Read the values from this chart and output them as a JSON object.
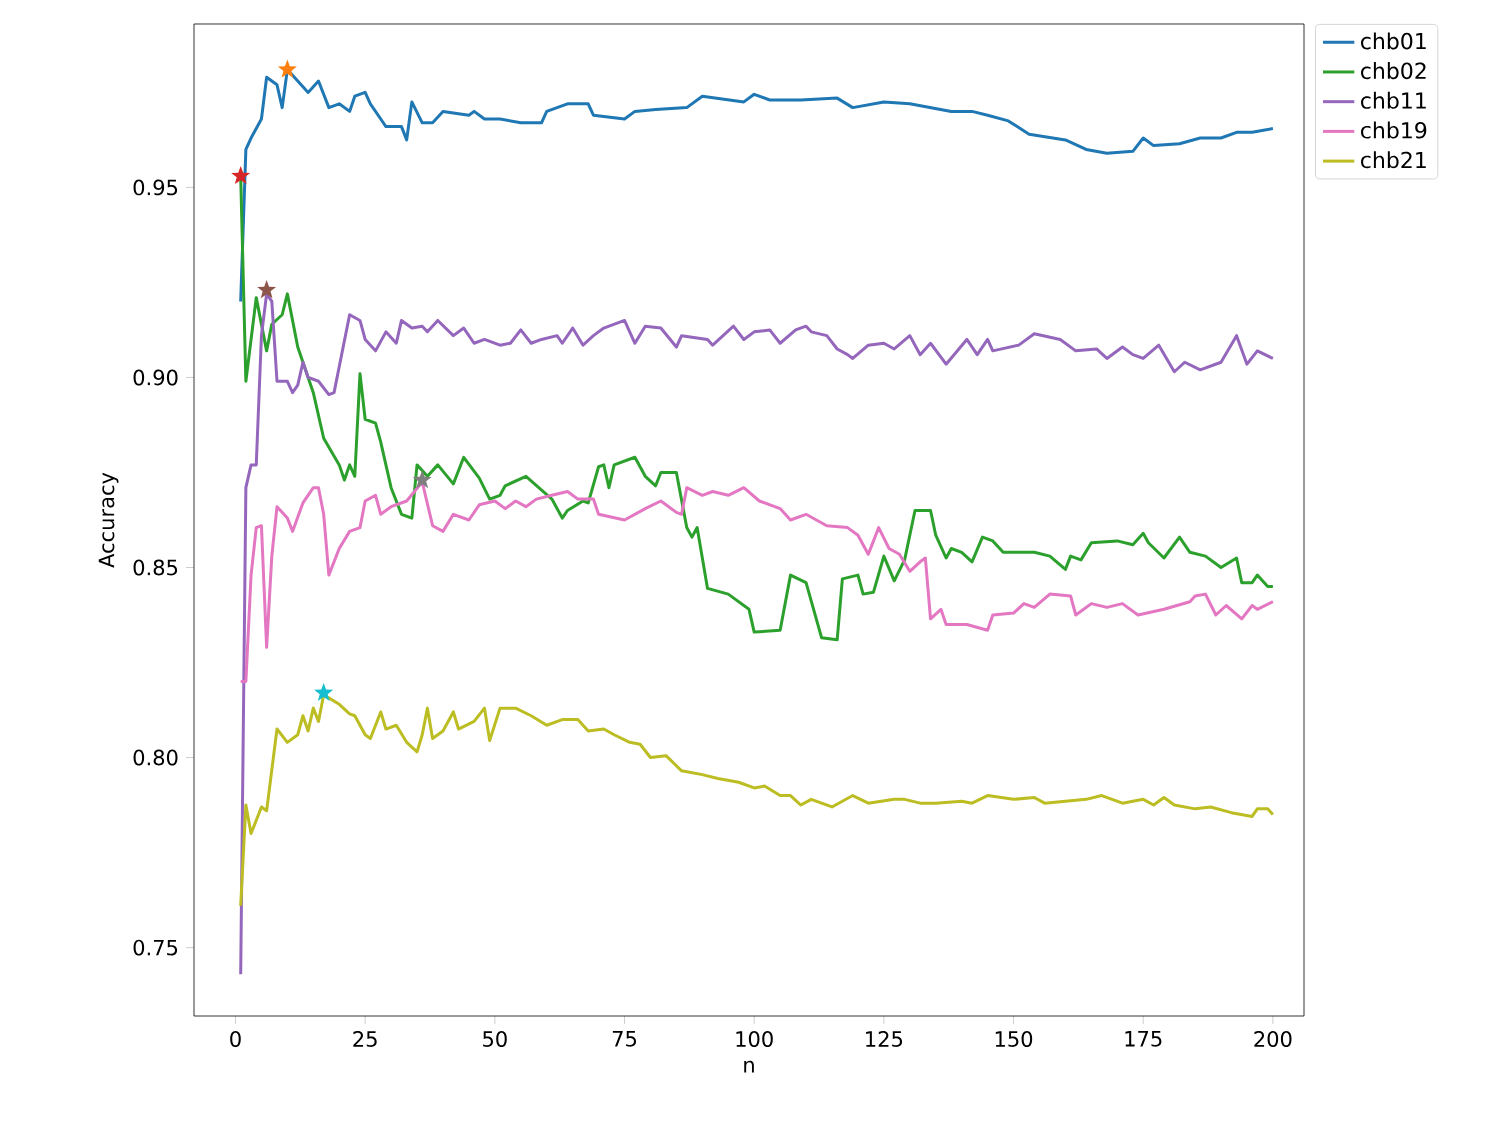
{
  "chart_data": {
    "type": "line",
    "xlabel": "n",
    "ylabel": "Accuracy",
    "xlim": [
      -8,
      206
    ],
    "ylim": [
      0.732,
      0.993
    ],
    "xticks": [
      0,
      25,
      50,
      75,
      100,
      125,
      150,
      175,
      200
    ],
    "yticks": [
      {
        "value": 0.75,
        "label": "0.75"
      },
      {
        "value": 0.8,
        "label": "0.80"
      },
      {
        "value": 0.85,
        "label": "0.85"
      },
      {
        "value": 0.9,
        "label": "0.90"
      },
      {
        "value": 0.95,
        "label": "0.95"
      }
    ],
    "legend": "top right",
    "series": [
      {
        "name": "chb01",
        "color": "#1f77b4",
        "x": [
          1,
          2,
          3,
          5,
          6,
          8,
          9,
          10,
          12,
          14,
          16,
          18,
          20,
          22,
          23,
          25,
          26,
          28,
          29,
          32,
          33,
          34,
          36,
          38,
          40,
          45,
          46,
          48,
          51,
          55,
          59,
          60,
          64,
          68,
          69,
          75,
          77,
          81,
          87,
          90,
          98,
          100,
          103,
          109,
          116,
          119,
          125,
          130,
          134,
          138,
          142,
          145,
          149,
          153,
          160,
          164,
          168,
          173,
          175,
          177,
          182,
          186,
          190,
          193,
          196,
          200
        ],
        "values": [
          0.92,
          0.96,
          0.963,
          0.968,
          0.979,
          0.977,
          0.971,
          0.981,
          0.978,
          0.975,
          0.978,
          0.971,
          0.972,
          0.97,
          0.974,
          0.975,
          0.972,
          0.968,
          0.966,
          0.966,
          0.9625,
          0.9725,
          0.967,
          0.967,
          0.97,
          0.969,
          0.97,
          0.968,
          0.968,
          0.967,
          0.967,
          0.97,
          0.972,
          0.972,
          0.969,
          0.968,
          0.97,
          0.9705,
          0.971,
          0.974,
          0.9725,
          0.9745,
          0.973,
          0.973,
          0.9735,
          0.971,
          0.9725,
          0.972,
          0.971,
          0.97,
          0.97,
          0.969,
          0.9675,
          0.964,
          0.9625,
          0.96,
          0.959,
          0.9595,
          0.963,
          0.961,
          0.9615,
          0.963,
          0.963,
          0.9645,
          0.9645,
          0.9655
        ]
      },
      {
        "name": "chb02",
        "color": "#2ca02c",
        "x": [
          1,
          2,
          4,
          6,
          7,
          9,
          10,
          12,
          13,
          15,
          17,
          20,
          21,
          22,
          23,
          24,
          25,
          27,
          28,
          30,
          32,
          34,
          35,
          37,
          39,
          42,
          44,
          47,
          49,
          51,
          52,
          56,
          61,
          63,
          64,
          67,
          68,
          70,
          71,
          72,
          73,
          77,
          79,
          81,
          82,
          85,
          87,
          88,
          89,
          91,
          95,
          99,
          100,
          105,
          107,
          110,
          113,
          116,
          117,
          120,
          121,
          123,
          125,
          127,
          129,
          131,
          134,
          135,
          137,
          138,
          140,
          142,
          144,
          146,
          148,
          154,
          157,
          160,
          161,
          163,
          165,
          170,
          173,
          175,
          176,
          179,
          182,
          184,
          187,
          190,
          193,
          194,
          196,
          197,
          199,
          200
        ],
        "values": [
          0.953,
          0.899,
          0.921,
          0.907,
          0.914,
          0.9165,
          0.922,
          0.908,
          0.904,
          0.896,
          0.884,
          0.877,
          0.873,
          0.877,
          0.874,
          0.901,
          0.889,
          0.888,
          0.883,
          0.871,
          0.864,
          0.863,
          0.877,
          0.874,
          0.877,
          0.872,
          0.879,
          0.8735,
          0.868,
          0.869,
          0.8715,
          0.874,
          0.868,
          0.863,
          0.865,
          0.8675,
          0.867,
          0.8765,
          0.877,
          0.871,
          0.877,
          0.879,
          0.874,
          0.8715,
          0.875,
          0.875,
          0.8605,
          0.858,
          0.8605,
          0.8445,
          0.843,
          0.839,
          0.833,
          0.8335,
          0.848,
          0.846,
          0.8315,
          0.831,
          0.847,
          0.848,
          0.843,
          0.8435,
          0.853,
          0.8465,
          0.852,
          0.865,
          0.865,
          0.8585,
          0.8525,
          0.855,
          0.854,
          0.8515,
          0.858,
          0.857,
          0.854,
          0.854,
          0.853,
          0.8495,
          0.853,
          0.852,
          0.8565,
          0.857,
          0.856,
          0.859,
          0.8565,
          0.8525,
          0.858,
          0.854,
          0.853,
          0.85,
          0.8525,
          0.846,
          0.846,
          0.848,
          0.845,
          0.845
        ]
      },
      {
        "name": "chb11",
        "color": "#9467bd",
        "x": [
          1,
          2,
          3,
          4,
          5,
          6,
          7,
          8,
          10,
          11,
          12,
          13,
          14,
          16,
          18,
          19,
          22,
          24,
          25,
          27,
          29,
          31,
          32,
          34,
          36,
          37,
          39,
          42,
          44,
          46,
          48,
          51,
          53,
          55,
          57,
          59,
          62,
          63,
          65,
          67,
          69,
          71,
          75,
          77,
          79,
          82,
          85,
          86,
          91,
          92,
          94,
          96,
          98,
          100,
          103,
          105,
          108,
          110,
          111,
          114,
          116,
          118,
          119,
          122,
          125,
          127,
          130,
          132,
          134,
          137,
          141,
          143,
          145,
          146,
          151,
          154,
          159,
          162,
          166,
          168,
          171,
          173,
          175,
          178,
          181,
          183,
          186,
          190,
          193,
          195,
          197,
          200
        ],
        "values": [
          0.743,
          0.871,
          0.877,
          0.877,
          0.911,
          0.922,
          0.92,
          0.899,
          0.899,
          0.896,
          0.898,
          0.904,
          0.9,
          0.899,
          0.8955,
          0.896,
          0.9165,
          0.915,
          0.91,
          0.907,
          0.912,
          0.909,
          0.915,
          0.913,
          0.9135,
          0.912,
          0.915,
          0.911,
          0.913,
          0.909,
          0.91,
          0.9085,
          0.909,
          0.9125,
          0.909,
          0.91,
          0.911,
          0.909,
          0.913,
          0.9085,
          0.911,
          0.913,
          0.915,
          0.909,
          0.9135,
          0.913,
          0.908,
          0.911,
          0.91,
          0.9085,
          0.911,
          0.9135,
          0.91,
          0.912,
          0.9125,
          0.909,
          0.9125,
          0.9135,
          0.912,
          0.911,
          0.9075,
          0.906,
          0.905,
          0.9085,
          0.909,
          0.9075,
          0.911,
          0.906,
          0.909,
          0.9035,
          0.91,
          0.906,
          0.91,
          0.907,
          0.9085,
          0.9115,
          0.91,
          0.907,
          0.9075,
          0.905,
          0.908,
          0.906,
          0.905,
          0.9085,
          0.9015,
          0.904,
          0.902,
          0.904,
          0.911,
          0.9035,
          0.907,
          0.905
        ]
      },
      {
        "name": "chb19",
        "color": "#e377c2",
        "x": [
          1,
          2,
          3,
          4,
          5,
          6,
          7,
          8,
          10,
          11,
          13,
          15,
          16,
          17,
          18,
          20,
          22,
          24,
          25,
          27,
          28,
          30,
          33,
          36,
          38,
          40,
          42,
          45,
          47,
          50,
          52,
          54,
          56,
          58,
          61,
          64,
          66,
          69,
          70,
          75,
          79,
          82,
          85,
          86,
          87,
          90,
          92,
          95,
          98,
          101,
          105,
          107,
          110,
          114,
          118,
          120,
          122,
          124,
          126,
          128,
          130,
          132,
          133,
          134,
          136,
          137,
          141,
          145,
          146,
          150,
          152,
          154,
          157,
          161,
          162,
          165,
          168,
          171,
          174,
          179,
          184,
          185,
          187,
          189,
          191,
          194,
          196,
          197,
          200
        ],
        "values": [
          0.82,
          0.82,
          0.848,
          0.8605,
          0.861,
          0.829,
          0.853,
          0.866,
          0.863,
          0.8595,
          0.867,
          0.871,
          0.871,
          0.864,
          0.848,
          0.855,
          0.8595,
          0.8605,
          0.8675,
          0.869,
          0.864,
          0.866,
          0.8675,
          0.8725,
          0.861,
          0.8595,
          0.864,
          0.8625,
          0.8665,
          0.8675,
          0.8655,
          0.8675,
          0.866,
          0.868,
          0.869,
          0.87,
          0.868,
          0.868,
          0.864,
          0.8625,
          0.8655,
          0.8675,
          0.8645,
          0.864,
          0.871,
          0.869,
          0.87,
          0.869,
          0.871,
          0.8675,
          0.8655,
          0.8625,
          0.864,
          0.861,
          0.8605,
          0.8585,
          0.8535,
          0.8605,
          0.855,
          0.8535,
          0.849,
          0.8515,
          0.8525,
          0.8365,
          0.839,
          0.835,
          0.835,
          0.8335,
          0.8375,
          0.838,
          0.8405,
          0.8395,
          0.843,
          0.8425,
          0.8375,
          0.8405,
          0.8395,
          0.8405,
          0.8375,
          0.839,
          0.841,
          0.8425,
          0.843,
          0.8375,
          0.84,
          0.8365,
          0.84,
          0.839,
          0.841
        ]
      },
      {
        "name": "chb21",
        "color": "#bcbd22",
        "x": [
          1,
          2,
          3,
          5,
          6,
          8,
          10,
          12,
          13,
          14,
          15,
          16,
          17,
          20,
          22,
          23,
          25,
          26,
          28,
          29,
          31,
          33,
          35,
          36,
          37,
          38,
          40,
          42,
          43,
          46,
          48,
          49,
          51,
          54,
          57,
          60,
          63,
          66,
          68,
          71,
          73,
          76,
          78,
          80,
          83,
          86,
          90,
          93,
          97,
          100,
          102,
          105,
          107,
          109,
          111,
          115,
          119,
          122,
          127,
          129,
          132,
          135,
          140,
          142,
          145,
          150,
          154,
          156,
          160,
          164,
          167,
          171,
          175,
          177,
          179,
          181,
          185,
          188,
          192,
          196,
          197,
          199,
          200
        ],
        "values": [
          0.761,
          0.7875,
          0.78,
          0.787,
          0.786,
          0.8075,
          0.804,
          0.806,
          0.811,
          0.807,
          0.813,
          0.8095,
          0.8165,
          0.814,
          0.8115,
          0.811,
          0.806,
          0.805,
          0.812,
          0.8075,
          0.8085,
          0.804,
          0.8015,
          0.806,
          0.813,
          0.805,
          0.807,
          0.812,
          0.8075,
          0.8095,
          0.813,
          0.8045,
          0.813,
          0.813,
          0.811,
          0.8085,
          0.81,
          0.81,
          0.807,
          0.8075,
          0.806,
          0.804,
          0.8035,
          0.8,
          0.8005,
          0.7965,
          0.7955,
          0.7945,
          0.7935,
          0.792,
          0.7925,
          0.79,
          0.79,
          0.7875,
          0.789,
          0.787,
          0.79,
          0.788,
          0.789,
          0.789,
          0.788,
          0.788,
          0.7885,
          0.788,
          0.79,
          0.789,
          0.7895,
          0.788,
          0.7885,
          0.789,
          0.79,
          0.788,
          0.789,
          0.7875,
          0.7895,
          0.7875,
          0.7865,
          0.787,
          0.7855,
          0.7845,
          0.7865,
          0.7865,
          0.785
        ]
      },
      {
        "type": "scatter",
        "marker": "star",
        "x": [
          10,
          1,
          6,
          36,
          17
        ],
        "values": [
          0.981,
          0.953,
          0.923,
          0.873,
          0.817
        ],
        "colors": [
          "#ff7f0e",
          "#d62728",
          "#8c564b",
          "#7f7f7f",
          "#17becf"
        ]
      }
    ]
  }
}
